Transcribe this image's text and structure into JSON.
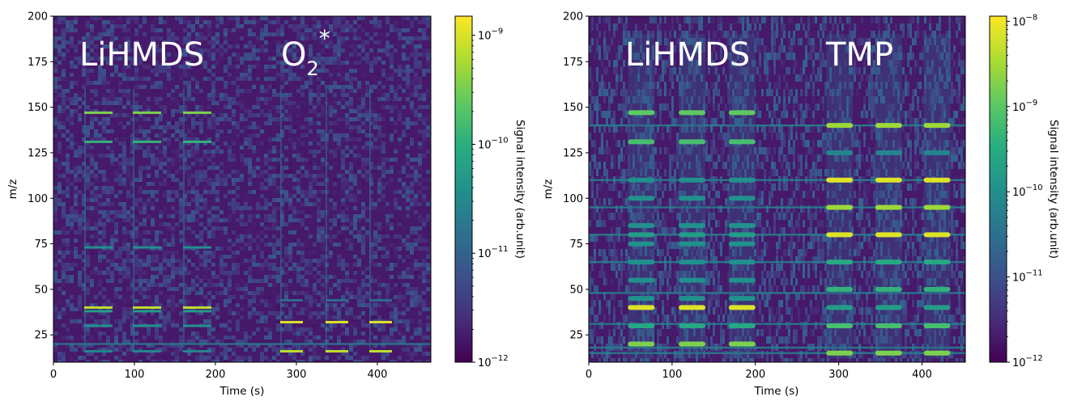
{
  "chart_data": [
    {
      "type": "heatmap",
      "xlabel": "Time (s)",
      "ylabel": "m/z",
      "xlim": [
        0,
        466
      ],
      "ylim": [
        10,
        200
      ],
      "xticks": [
        "0",
        "100",
        "200",
        "300",
        "400"
      ],
      "yticks": [
        "25",
        "50",
        "75",
        "100",
        "125",
        "150",
        "175",
        "200"
      ],
      "colorbar": {
        "label": "Signal intensity (arb.unit)",
        "scale": "log",
        "range": [
          1e-12,
          1.5e-09
        ],
        "ticks": [
          {
            "base": "10",
            "exp": "−12",
            "value": 1e-12
          },
          {
            "base": "10",
            "exp": "−11",
            "value": 1e-11
          },
          {
            "base": "10",
            "exp": "−10",
            "value": 1e-10
          },
          {
            "base": "10",
            "exp": "−9",
            "value": 1e-09
          }
        ]
      },
      "annotations": [
        {
          "text": "LiHMDS"
        },
        {
          "text": "O",
          "sub": "2",
          "sup": "*"
        }
      ],
      "pulses": [
        {
          "label": "LiHMDS",
          "t_start": [
            38,
            98,
            160
          ],
          "duration": 35,
          "mz": [
            147,
            131,
            73,
            40,
            38,
            30,
            16
          ],
          "intensity": [
            0.8,
            0.65,
            0.5,
            0.9,
            0.55,
            0.5,
            0.45
          ]
        },
        {
          "label": "O2*",
          "t_start": [
            280,
            336,
            390
          ],
          "duration": 28,
          "mz": [
            32,
            16,
            44
          ],
          "intensity": [
            0.95,
            0.9,
            0.35
          ]
        }
      ],
      "continuous_lines_mz": [
        20
      ]
    },
    {
      "type": "heatmap",
      "xlabel": "Time (s)",
      "ylabel": "m/z",
      "xlim": [
        0,
        452
      ],
      "ylim": [
        10,
        200
      ],
      "xticks": [
        "0",
        "100",
        "200",
        "300",
        "400"
      ],
      "yticks": [
        "25",
        "50",
        "75",
        "100",
        "125",
        "150",
        "175",
        "200"
      ],
      "colorbar": {
        "label": "Signal intensity (arb.unit)",
        "scale": "log",
        "range": [
          1e-12,
          1.15e-08
        ],
        "ticks": [
          {
            "base": "10",
            "exp": "−12",
            "value": 1e-12
          },
          {
            "base": "10",
            "exp": "−11",
            "value": 1e-11
          },
          {
            "base": "10",
            "exp": "−10",
            "value": 1e-10
          },
          {
            "base": "10",
            "exp": "−9",
            "value": 1e-09
          },
          {
            "base": "10",
            "exp": "−8",
            "value": 1e-08
          }
        ]
      },
      "annotations": [
        {
          "text": "LiHMDS"
        },
        {
          "text": "TMP"
        }
      ],
      "pulses": [
        {
          "label": "LiHMDS",
          "t_start": [
            47,
            108,
            168
          ],
          "duration": 32,
          "mz": [
            147,
            131,
            110,
            100,
            85,
            80,
            75,
            65,
            55,
            45,
            40,
            30,
            20
          ],
          "intensity": [
            0.75,
            0.7,
            0.5,
            0.5,
            0.5,
            0.55,
            0.5,
            0.5,
            0.5,
            0.5,
            0.95,
            0.6,
            0.8
          ]
        },
        {
          "label": "TMP",
          "t_start": [
            285,
            344,
            402
          ],
          "duration": 32,
          "mz": [
            140,
            125,
            110,
            95,
            80,
            65,
            50,
            40,
            30,
            15
          ],
          "intensity": [
            0.85,
            0.45,
            0.95,
            0.85,
            0.95,
            0.6,
            0.65,
            0.55,
            0.7,
            0.8
          ]
        }
      ],
      "continuous_lines_mz": [
        140,
        110,
        95,
        80,
        65,
        48,
        31,
        18,
        15
      ]
    }
  ]
}
